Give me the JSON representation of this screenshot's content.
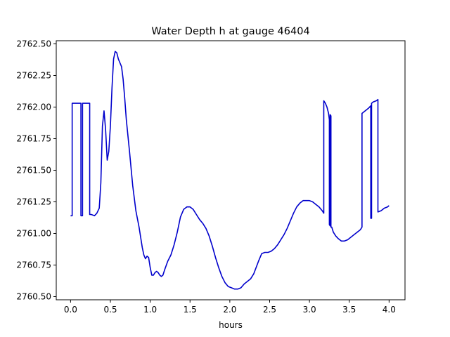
{
  "chart_data": {
    "type": "line",
    "title": "Water Depth h at gauge 46404",
    "xlabel": "hours",
    "ylabel": "",
    "xlim": [
      -0.18,
      4.2
    ],
    "ylim": [
      2760.475,
      2762.525
    ],
    "xticks": [
      0.0,
      0.5,
      1.0,
      1.5,
      2.0,
      2.5,
      3.0,
      3.5,
      4.0
    ],
    "xtick_labels": [
      "0.0",
      "0.5",
      "1.0",
      "1.5",
      "2.0",
      "2.5",
      "3.0",
      "3.5",
      "4.0"
    ],
    "yticks": [
      2760.5,
      2760.75,
      2761.0,
      2761.25,
      2761.5,
      2761.75,
      2762.0,
      2762.25,
      2762.5
    ],
    "ytick_labels": [
      "2760.50",
      "2760.75",
      "2761.00",
      "2761.25",
      "2761.50",
      "2761.75",
      "2762.00",
      "2762.25",
      "2762.50"
    ],
    "grid": false,
    "series": [
      {
        "color": "#0000cc",
        "x": [
          0.0,
          0.02,
          0.02,
          0.13,
          0.13,
          0.15,
          0.15,
          0.16,
          0.16,
          0.24,
          0.24,
          0.26,
          0.3,
          0.33,
          0.36,
          0.38,
          0.4,
          0.42,
          0.44,
          0.46,
          0.48,
          0.5,
          0.52,
          0.54,
          0.56,
          0.58,
          0.6,
          0.62,
          0.64,
          0.66,
          0.68,
          0.7,
          0.74,
          0.78,
          0.82,
          0.86,
          0.9,
          0.92,
          0.94,
          0.96,
          0.98,
          1.0,
          1.02,
          1.04,
          1.06,
          1.08,
          1.1,
          1.12,
          1.14,
          1.16,
          1.18,
          1.22,
          1.26,
          1.3,
          1.34,
          1.38,
          1.42,
          1.46,
          1.5,
          1.54,
          1.58,
          1.62,
          1.66,
          1.7,
          1.74,
          1.78,
          1.82,
          1.86,
          1.9,
          1.94,
          1.98,
          2.02,
          2.06,
          2.1,
          2.14,
          2.18,
          2.22,
          2.26,
          2.3,
          2.33,
          2.36,
          2.4,
          2.44,
          2.48,
          2.52,
          2.56,
          2.6,
          2.64,
          2.68,
          2.72,
          2.76,
          2.8,
          2.84,
          2.88,
          2.92,
          2.96,
          3.0,
          3.04,
          3.08,
          3.12,
          3.16,
          3.18,
          3.18,
          3.2,
          3.22,
          3.24,
          3.25,
          3.25,
          3.26,
          3.26,
          3.27,
          3.27,
          3.28,
          3.28,
          3.3,
          3.33,
          3.36,
          3.4,
          3.44,
          3.48,
          3.52,
          3.56,
          3.6,
          3.64,
          3.66,
          3.66,
          3.7,
          3.74,
          3.77,
          3.77,
          3.78,
          3.78,
          3.8,
          3.84,
          3.86,
          3.86,
          3.9,
          3.94,
          3.98,
          4.0
        ],
        "y": [
          2761.14,
          2761.14,
          2762.03,
          2762.03,
          2761.14,
          2761.14,
          2762.03,
          2762.03,
          2762.03,
          2762.03,
          2761.15,
          2761.15,
          2761.14,
          2761.16,
          2761.2,
          2761.4,
          2761.85,
          2761.97,
          2761.82,
          2761.58,
          2761.65,
          2761.85,
          2762.15,
          2762.38,
          2762.44,
          2762.43,
          2762.38,
          2762.35,
          2762.32,
          2762.22,
          2762.07,
          2761.9,
          2761.65,
          2761.38,
          2761.18,
          2761.05,
          2760.89,
          2760.83,
          2760.8,
          2760.82,
          2760.81,
          2760.73,
          2760.67,
          2760.67,
          2760.69,
          2760.7,
          2760.69,
          2760.67,
          2760.66,
          2760.67,
          2760.71,
          2760.78,
          2760.83,
          2760.91,
          2761.01,
          2761.13,
          2761.19,
          2761.21,
          2761.21,
          2761.19,
          2761.15,
          2761.11,
          2761.08,
          2761.04,
          2760.98,
          2760.9,
          2760.81,
          2760.73,
          2760.66,
          2760.61,
          2760.58,
          2760.57,
          2760.56,
          2760.56,
          2760.57,
          2760.6,
          2760.62,
          2760.64,
          2760.68,
          2760.73,
          2760.78,
          2760.84,
          2760.85,
          2760.85,
          2760.86,
          2760.88,
          2760.91,
          2760.95,
          2760.99,
          2761.04,
          2761.1,
          2761.16,
          2761.21,
          2761.24,
          2761.26,
          2761.26,
          2761.26,
          2761.25,
          2761.23,
          2761.21,
          2761.18,
          2761.16,
          2762.05,
          2762.03,
          2762.0,
          2761.95,
          2761.9,
          2761.07,
          2761.06,
          2761.94,
          2761.93,
          2761.05,
          2761.05,
          2761.05,
          2761.01,
          2760.98,
          2760.96,
          2760.94,
          2760.94,
          2760.95,
          2760.97,
          2760.99,
          2761.01,
          2761.03,
          2761.05,
          2761.95,
          2761.97,
          2761.99,
          2762.01,
          2761.12,
          2761.12,
          2762.03,
          2762.04,
          2762.05,
          2762.06,
          2761.17,
          2761.18,
          2761.2,
          2761.21,
          2761.22
        ]
      }
    ]
  }
}
